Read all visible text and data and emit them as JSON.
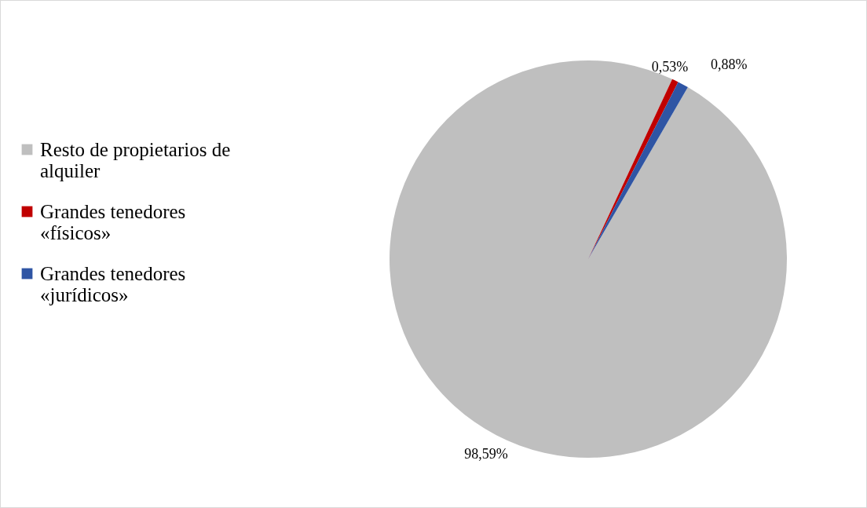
{
  "chart_data": {
    "type": "pie",
    "categories": [
      "Resto de propietarios de alquiler",
      "Grandes tenedores «físicos»",
      "Grandes tenedores «jurídicos»"
    ],
    "values": [
      98.59,
      0.53,
      0.88
    ],
    "colors": [
      "#bfbfbf",
      "#c00000",
      "#2f55a4"
    ],
    "value_labels": [
      "98,59%",
      "0,53%",
      "0,88%"
    ],
    "legend": "left"
  }
}
